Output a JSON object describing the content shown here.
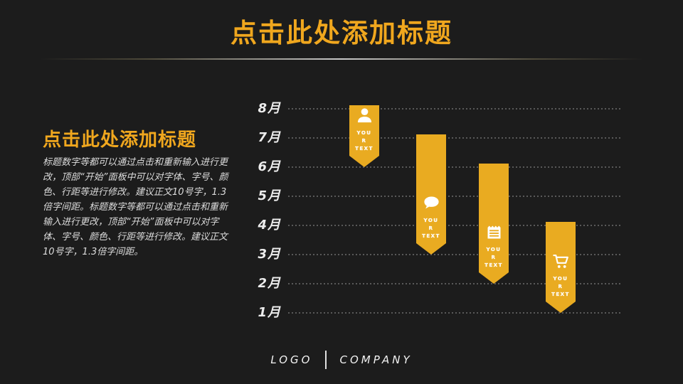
{
  "slide": {
    "title": "点击此处添加标题",
    "background_color": "#1c1c1c",
    "accent_color": "#F0A71E"
  },
  "left_panel": {
    "heading": "点击此处添加标题",
    "body": "标题数字等都可以通过点击和重新输入进行更改，顶部“开始”面板中可以对字体、字号、颜色、行距等进行修改。建议正文10号字，1.3倍字间距。标题数字等都可以通过点击和重新输入进行更改，顶部“开始”面板中可以对字体、字号、颜色、行距等进行修改。建议正文10号字，1.3倍字间距。"
  },
  "footer": {
    "logo": "LOGO",
    "company": "COMPANY"
  },
  "chart_data": {
    "type": "bar",
    "subtype": "hanging-ribbon-timeline",
    "title": "",
    "ylabel": "",
    "y_axis_months_bottom_to_top": [
      "1月",
      "2月",
      "3月",
      "4月",
      "5月",
      "6月",
      "7月",
      "8月"
    ],
    "grid": "dotted horizontal lines, one per month",
    "legend_position": "none",
    "ribbon_color": "#E9AB21",
    "series": [
      {
        "name": "ribbon-1",
        "icon": "user-icon",
        "label_lines": [
          "YOU",
          "R",
          "TEXT"
        ],
        "start_month": "8月",
        "end_month": "6月"
      },
      {
        "name": "ribbon-2",
        "icon": "speech-bubble-icon",
        "label_lines": [
          "YOU",
          "R",
          "TEXT"
        ],
        "start_month": "7月",
        "end_month": "3月"
      },
      {
        "name": "ribbon-3",
        "icon": "notepad-icon",
        "label_lines": [
          "YOU",
          "R",
          "TEXT"
        ],
        "start_month": "6月",
        "end_month": "2月"
      },
      {
        "name": "ribbon-4",
        "icon": "shopping-cart-icon",
        "label_lines": [
          "YOU",
          "R",
          "TEXT"
        ],
        "start_month": "4月",
        "end_month": "1月"
      }
    ]
  }
}
